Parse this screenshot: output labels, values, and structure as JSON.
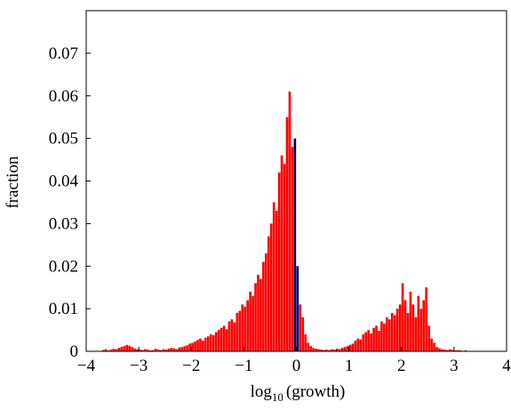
{
  "chart_data": {
    "type": "histogram",
    "xlabel": [
      "log",
      "10",
      "(growth)"
    ],
    "ylabel": "fraction",
    "xlim": [
      -4,
      4
    ],
    "ylim": [
      0,
      0.08
    ],
    "xticks": [
      {
        "value": -4,
        "label": "−4"
      },
      {
        "value": -3,
        "label": "−3"
      },
      {
        "value": -2,
        "label": "−2"
      },
      {
        "value": -1,
        "label": "−1"
      },
      0,
      1,
      2,
      3,
      4
    ],
    "yticks": [
      0,
      0.01,
      0.02,
      0.03,
      0.04,
      0.05,
      0.06,
      0.07
    ],
    "series": [
      {
        "color": "#ff0000",
        "bins": [
          -3.7,
          -3.65,
          -3.6,
          -3.55,
          -3.5,
          -3.45,
          -3.4,
          -3.35,
          -3.3,
          -3.25,
          -3.2,
          -3.15,
          -3.1,
          -3.05,
          -3,
          -2.95,
          -2.9,
          -2.85,
          -2.8,
          -2.75,
          -2.7,
          -2.65,
          -2.6,
          -2.55,
          -2.5,
          -2.45,
          -2.4,
          -2.35,
          -2.3,
          -2.25,
          -2.2,
          -2.15,
          -2.1,
          -2.05,
          -2,
          -1.95,
          -1.9,
          -1.85,
          -1.8,
          -1.75,
          -1.7,
          -1.65,
          -1.6,
          -1.55,
          -1.5,
          -1.45,
          -1.4,
          -1.35,
          -1.3,
          -1.25,
          -1.2,
          -1.15,
          -1.1,
          -1.05,
          -1,
          -0.95,
          -0.9,
          -0.85,
          -0.8,
          -0.75,
          -0.7,
          -0.65,
          -0.6,
          -0.55,
          -0.5,
          -0.45,
          -0.4,
          -0.35,
          -0.3,
          -0.25,
          -0.2,
          -0.15,
          -0.1,
          -0.05,
          0,
          0.05,
          0.1,
          0.15,
          0.2,
          0.25,
          0.3,
          0.35,
          0.4,
          0.45,
          0.5,
          0.55,
          0.6,
          0.65,
          0.7,
          0.75,
          0.8,
          0.85,
          0.9,
          0.95,
          1,
          1.05,
          1.1,
          1.15,
          1.2,
          1.25,
          1.3,
          1.35,
          1.4,
          1.45,
          1.5,
          1.55,
          1.6,
          1.65,
          1.7,
          1.75,
          1.8,
          1.85,
          1.9,
          1.95,
          2,
          2.05,
          2.1,
          2.15,
          2.2,
          2.25,
          2.3,
          2.35,
          2.4,
          2.45,
          2.5,
          2.55,
          2.6,
          2.65,
          2.7,
          2.75,
          2.8,
          2.85,
          2.9,
          2.95,
          3,
          3.05,
          3.1,
          3.15,
          3.2,
          3.25,
          3.3
        ],
        "values": [
          0.0003,
          0.0005,
          0.0002,
          0.0004,
          0.0006,
          0.0005,
          0.0008,
          0.001,
          0.0012,
          0.0015,
          0.0013,
          0.001,
          0.0007,
          0.0005,
          0.0004,
          0.0003,
          0.0005,
          0.0004,
          0.0002,
          0.0003,
          0.0006,
          0.0004,
          0.0003,
          0.0005,
          0.0004,
          0.0006,
          0.0008,
          0.0007,
          0.0005,
          0.0009,
          0.001,
          0.0012,
          0.0014,
          0.0018,
          0.002,
          0.0023,
          0.0027,
          0.003,
          0.0025,
          0.0032,
          0.0035,
          0.004,
          0.0038,
          0.0045,
          0.005,
          0.0055,
          0.006,
          0.0052,
          0.007,
          0.0075,
          0.0068,
          0.009,
          0.0095,
          0.011,
          0.0105,
          0.012,
          0.014,
          0.013,
          0.016,
          0.018,
          0.017,
          0.021,
          0.023,
          0.027,
          0.03,
          0.035,
          0.033,
          0.042,
          0.046,
          0.044,
          0.055,
          0.061,
          0.048,
          0,
          0,
          0.011,
          0.008,
          0.004,
          0.002,
          0.0012,
          0.0008,
          0.0006,
          0.0005,
          0.0004,
          0.0003,
          0.0004,
          0.0003,
          0.0005,
          0.0004,
          0.0006,
          0.0005,
          0.0008,
          0.001,
          0.0012,
          0.0015,
          0.0018,
          0.0025,
          0.003,
          0.0028,
          0.004,
          0.0045,
          0.005,
          0.0042,
          0.0055,
          0.006,
          0.0048,
          0.007,
          0.0065,
          0.008,
          0.0075,
          0.009,
          0.0085,
          0.01,
          0.011,
          0.016,
          0.012,
          0.009,
          0.014,
          0.011,
          0.008,
          0.013,
          0.01,
          0.012,
          0.015,
          0.006,
          0.003,
          0.002,
          0.001,
          0.0007,
          0.0005,
          0.0004,
          0.0003,
          0.0005,
          0.0003,
          0.0002,
          0.0003,
          0.0002,
          0.0001,
          0.0002,
          0.0001
        ]
      },
      {
        "color": "#000066",
        "bins": [
          -0.05,
          0,
          0.05
        ],
        "values": [
          0.05,
          0.02
        ]
      }
    ]
  }
}
